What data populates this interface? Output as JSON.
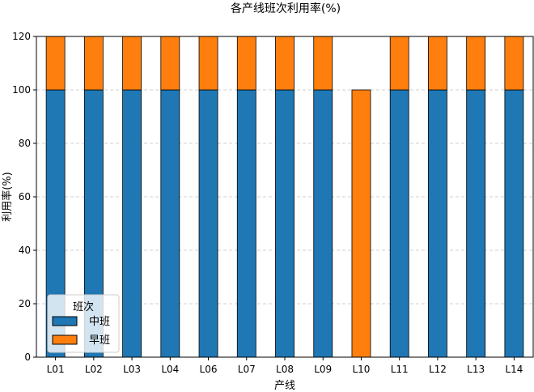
{
  "chart_data": {
    "type": "bar",
    "stacked": true,
    "title": "各产线班次利用率(%)",
    "xlabel": "产线",
    "ylabel": "利用率(%)",
    "ylim": [
      0,
      120
    ],
    "yticks": [
      0,
      20,
      40,
      60,
      80,
      100,
      120
    ],
    "grid": "y-dashed",
    "categories": [
      "L01",
      "L02",
      "L03",
      "L04",
      "L06",
      "L07",
      "L08",
      "L09",
      "L10",
      "L11",
      "L12",
      "L13",
      "L14"
    ],
    "series": [
      {
        "name": "中班",
        "color": "#1f77b4",
        "values": [
          100,
          100,
          100,
          100,
          100,
          100,
          100,
          100,
          0,
          100,
          100,
          100,
          100
        ]
      },
      {
        "name": "早班",
        "color": "#ff7f0e",
        "values": [
          20,
          20,
          20,
          20,
          20,
          20,
          20,
          20,
          100,
          20,
          20,
          20,
          20
        ]
      }
    ],
    "legend": {
      "title": "班次",
      "placement": "lower-left"
    }
  }
}
